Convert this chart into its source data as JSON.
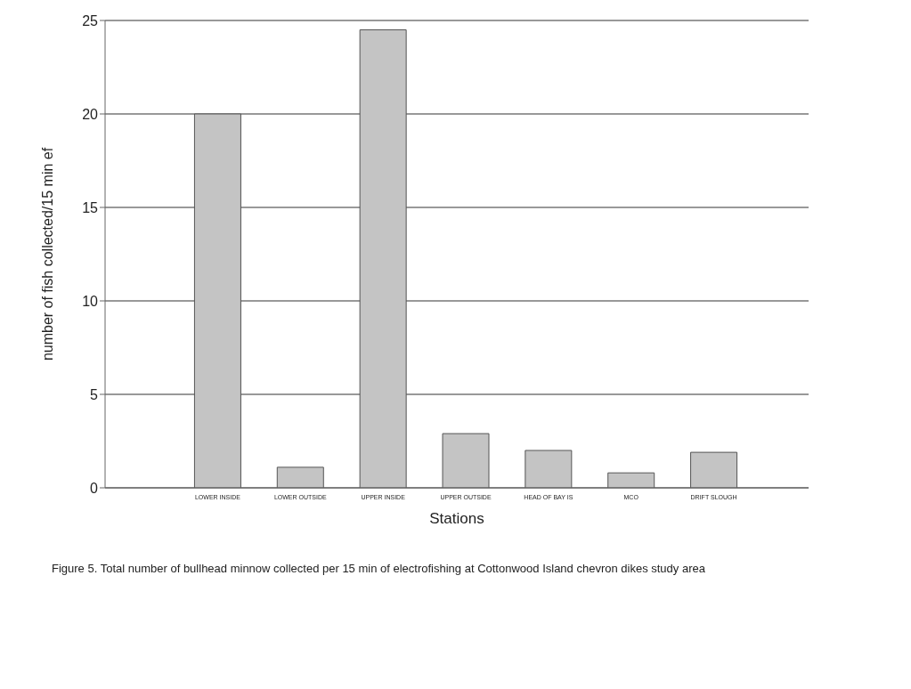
{
  "chart_data": {
    "type": "bar",
    "xlabel": "Stations",
    "ylabel": "number of fish collected/15 min ef",
    "categories": [
      "LOWER INSIDE",
      "LOWER OUTSIDE",
      "UPPER INSIDE",
      "UPPER OUTSIDE",
      "HEAD OF BAY IS",
      "MCO",
      "DRIFT SLOUGH"
    ],
    "values": [
      20,
      1.1,
      24.5,
      2.9,
      2,
      0.8,
      1.9
    ],
    "color": "#c4c4c4",
    "ylim": [
      0,
      25
    ],
    "yticks": [
      0,
      5,
      10,
      15,
      20,
      25
    ],
    "grid": "y",
    "annotations": [
      "Figure 5.  Total number of bullhead minnow collected per 15 min of electrofishing at Cottonwood Island chevron dikes study area"
    ]
  }
}
